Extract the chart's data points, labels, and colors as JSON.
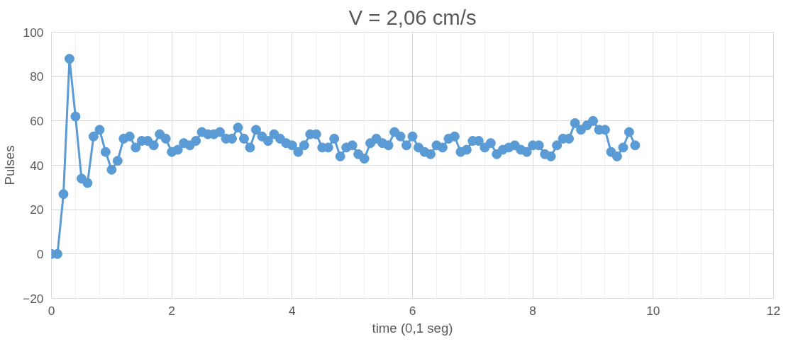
{
  "chart_data": {
    "type": "line",
    "title": "V = 2,06 cm/s",
    "xlabel": "time (0,1 seg)",
    "ylabel": "Pulses",
    "x": [
      0,
      0.1,
      0.2,
      0.3,
      0.4,
      0.5,
      0.6,
      0.7,
      0.8,
      0.9,
      1.0,
      1.1,
      1.2,
      1.3,
      1.4,
      1.5,
      1.6,
      1.7,
      1.8,
      1.9,
      2.0,
      2.1,
      2.2,
      2.3,
      2.4,
      2.5,
      2.6,
      2.7,
      2.8,
      2.9,
      3.0,
      3.1,
      3.2,
      3.3,
      3.4,
      3.5,
      3.6,
      3.7,
      3.8,
      3.9,
      4.0,
      4.1,
      4.2,
      4.3,
      4.4,
      4.5,
      4.6,
      4.7,
      4.8,
      4.9,
      5.0,
      5.1,
      5.2,
      5.3,
      5.4,
      5.5,
      5.6,
      5.7,
      5.8,
      5.9,
      6.0,
      6.1,
      6.2,
      6.3,
      6.4,
      6.5,
      6.6,
      6.7,
      6.8,
      6.9,
      7.0,
      7.1,
      7.2,
      7.3,
      7.4,
      7.5,
      7.6,
      7.7,
      7.8,
      7.9,
      8.0,
      8.1,
      8.2,
      8.3,
      8.4,
      8.5,
      8.6,
      8.7,
      8.8,
      8.9,
      9.0,
      9.1,
      9.2,
      9.3,
      9.4,
      9.5,
      9.6,
      9.7
    ],
    "series": [
      {
        "color": "#5b9bd5",
        "values": [
          0,
          0,
          27,
          88,
          62,
          34,
          32,
          53,
          56,
          46,
          38,
          42,
          52,
          53,
          48,
          51,
          51,
          49,
          54,
          52,
          46,
          47,
          50,
          49,
          51,
          55,
          54,
          54,
          55,
          52,
          52,
          57,
          52,
          48,
          56,
          53,
          51,
          54,
          52,
          50,
          49,
          46,
          49,
          54,
          54,
          48,
          48,
          52,
          44,
          48,
          49,
          45,
          43,
          50,
          52,
          50,
          49,
          55,
          53,
          49,
          53,
          48,
          46,
          45,
          49,
          48,
          52,
          53,
          46,
          47,
          51,
          51,
          48,
          50,
          45,
          47,
          48,
          49,
          47,
          46,
          49,
          49,
          45,
          44,
          49,
          52,
          52,
          59,
          56,
          58,
          60,
          56,
          56,
          46,
          44,
          48,
          55,
          49
        ]
      }
    ],
    "xlim": [
      0,
      12
    ],
    "xticks": [
      0,
      2,
      4,
      6,
      8,
      10,
      12
    ],
    "ylim": [
      -20,
      100
    ],
    "yticks": [
      -20,
      0,
      20,
      40,
      60,
      80,
      100
    ],
    "grid": true,
    "marker": "circle",
    "line_style": "solid"
  }
}
